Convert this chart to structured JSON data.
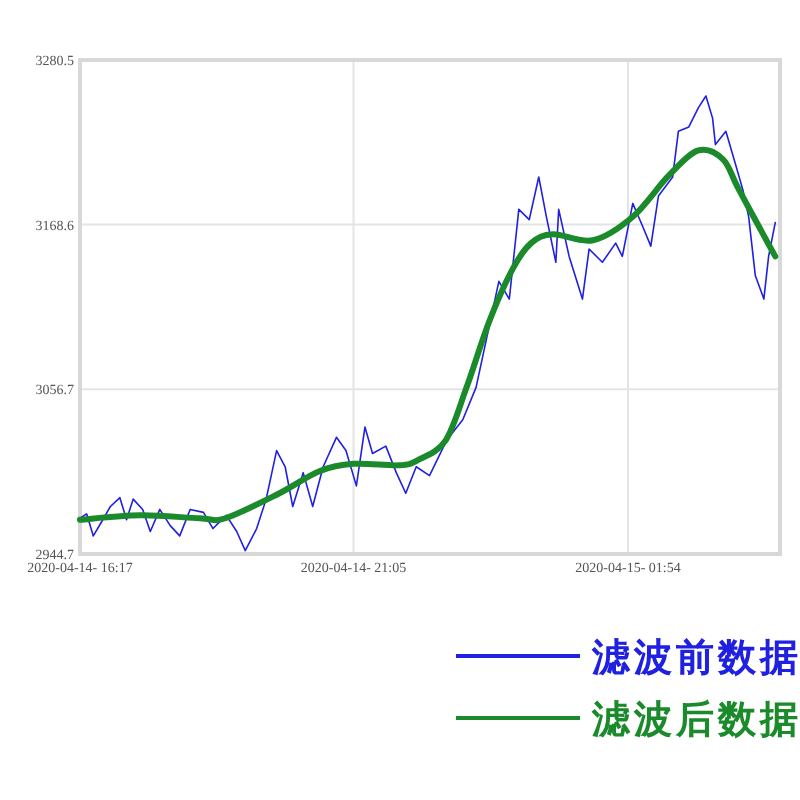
{
  "chart_data": {
    "type": "line",
    "xlim": [
      "2020-04-14T16:17",
      "2020-04-15T04:34"
    ],
    "ylim": [
      2944.7,
      3280.5
    ],
    "xticks": [
      {
        "value": "2020-04-14T16:17",
        "label": "2020-04-14- 16:17"
      },
      {
        "value": "2020-04-14T21:05",
        "label": "2020-04-14- 21:05"
      },
      {
        "value": "2020-04-15T01:54",
        "label": "2020-04-15- 01:54"
      }
    ],
    "yticks": [
      2944.7,
      3056.7,
      3168.6,
      3280.5
    ],
    "grid": true,
    "legend": "bottom right",
    "series": [
      {
        "name": "滤波前数据",
        "color": "#2020e0",
        "x": [
          "2020-04-14T16:17",
          "2020-04-14T16:24",
          "2020-04-14T16:31",
          "2020-04-14T16:41",
          "2020-04-14T16:49",
          "2020-04-14T16:59",
          "2020-04-14T17:06",
          "2020-04-14T17:13",
          "2020-04-14T17:23",
          "2020-04-14T17:31",
          "2020-04-14T17:41",
          "2020-04-14T17:52",
          "2020-04-14T18:02",
          "2020-04-14T18:13",
          "2020-04-14T18:27",
          "2020-04-14T18:37",
          "2020-04-14T18:51",
          "2020-04-14T19:02",
          "2020-04-14T19:11",
          "2020-04-14T19:23",
          "2020-04-14T19:33",
          "2020-04-14T19:44",
          "2020-04-14T19:53",
          "2020-04-14T20:01",
          "2020-04-14T20:12",
          "2020-04-14T20:22",
          "2020-04-14T20:33",
          "2020-04-14T20:47",
          "2020-04-14T20:57",
          "2020-04-14T21:08",
          "2020-04-14T21:17",
          "2020-04-14T21:25",
          "2020-04-14T21:39",
          "2020-04-14T21:50",
          "2020-04-14T22:00",
          "2020-04-14T22:11",
          "2020-04-14T22:25",
          "2020-04-14T22:43",
          "2020-04-14T23:00",
          "2020-04-14T23:14",
          "2020-04-14T23:38",
          "2020-04-14T23:49",
          "2020-04-14T23:59",
          "2020-04-15T00:10",
          "2020-04-15T00:20",
          "2020-04-15T00:28",
          "2020-04-15T00:38",
          "2020-04-15T00:41",
          "2020-04-15T00:52",
          "2020-04-15T01:06",
          "2020-04-15T01:13",
          "2020-04-15T01:27",
          "2020-04-15T01:41",
          "2020-04-15T01:48",
          "2020-04-15T01:59",
          "2020-04-15T02:09",
          "2020-04-15T02:18",
          "2020-04-15T02:26",
          "2020-04-15T02:41",
          "2020-04-15T02:47",
          "2020-04-15T02:58",
          "2020-04-15T03:08",
          "2020-04-15T03:16",
          "2020-04-15T03:23",
          "2020-04-15T03:26",
          "2020-04-15T03:37",
          "2020-04-15T03:47",
          "2020-04-15T03:55",
          "2020-04-15T04:01",
          "2020-04-15T04:08",
          "2020-04-15T04:17",
          "2020-04-15T04:22",
          "2020-04-15T04:29"
        ],
        "values": [
          2969,
          2972,
          2957,
          2968,
          2977,
          2983,
          2968,
          2982,
          2975,
          2960,
          2975,
          2964,
          2957,
          2975,
          2973,
          2962,
          2971,
          2960,
          2947,
          2962,
          2982,
          3015,
          3004,
          2977,
          3000,
          2977,
          3004,
          3024,
          3015,
          2991,
          3031,
          3013,
          3018,
          3000,
          2986,
          3004,
          2998,
          3022,
          3036,
          3058,
          3130,
          3118,
          3179,
          3172,
          3201,
          3174,
          3143,
          3179,
          3147,
          3118,
          3152,
          3143,
          3156,
          3147,
          3183,
          3168,
          3154,
          3188,
          3201,
          3232,
          3235,
          3248,
          3256,
          3241,
          3223,
          3232,
          3210,
          3192,
          3174,
          3134,
          3118,
          3147,
          3170
        ]
      },
      {
        "name": "滤波后数据",
        "color": "#1a8a2a",
        "x": [
          "2020-04-14T16:17",
          "2020-04-14T17:20",
          "2020-04-14T18:23",
          "2020-04-14T18:50",
          "2020-04-14T19:47",
          "2020-04-14T20:29",
          "2020-04-14T21:05",
          "2020-04-14T21:53",
          "2020-04-14T22:14",
          "2020-04-14T22:42",
          "2020-04-14T23:04",
          "2020-04-14T23:28",
          "2020-04-14T23:53",
          "2020-04-15T00:12",
          "2020-04-15T00:35",
          "2020-04-15T01:17",
          "2020-04-15T01:59",
          "2020-04-15T02:37",
          "2020-04-15T03:08",
          "2020-04-15T03:34",
          "2020-04-15T03:51",
          "2020-04-15T04:29"
        ],
        "values": [
          2968,
          2971,
          2969,
          2969,
          2986,
          3001,
          3006,
          3005,
          3009,
          3022,
          3058,
          3103,
          3139,
          3156,
          3162,
          3158,
          3174,
          3202,
          3219,
          3213,
          3192,
          3147
        ]
      }
    ]
  }
}
